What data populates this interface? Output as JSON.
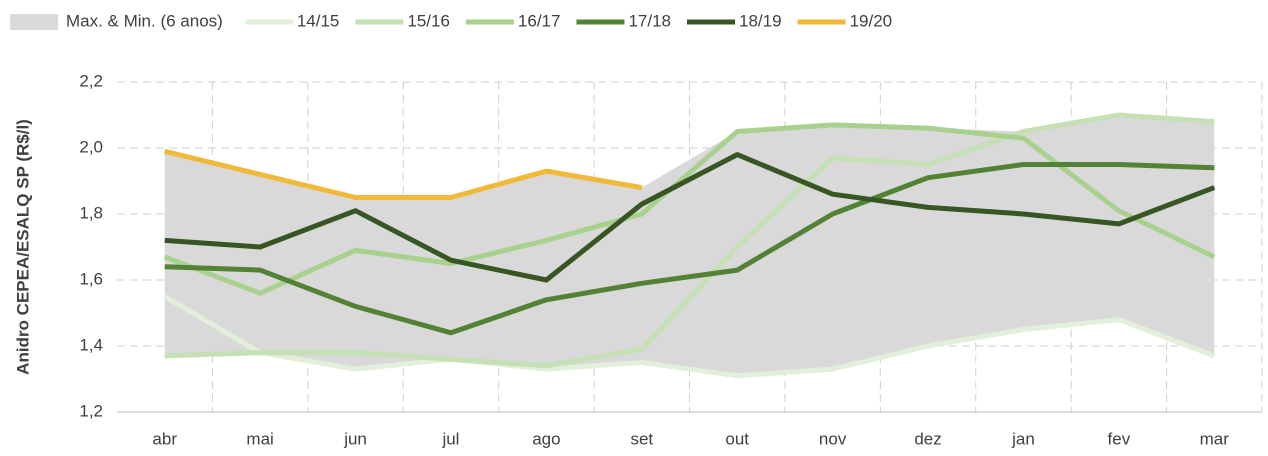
{
  "chart_data": {
    "type": "line",
    "y_label": "Anidro CEPEA/ESALQ SP (R$/l)",
    "categories": [
      "abr",
      "mai",
      "jun",
      "jul",
      "ago",
      "set",
      "out",
      "nov",
      "dez",
      "jan",
      "fev",
      "mar"
    ],
    "band": {
      "name": "Max. & Min. (6 anos)",
      "color": "#d9d9d9",
      "upper": [
        1.99,
        1.92,
        1.85,
        1.85,
        1.93,
        1.88,
        2.05,
        2.07,
        2.06,
        2.05,
        2.1,
        2.08
      ],
      "lower": [
        1.37,
        1.38,
        1.33,
        1.36,
        1.33,
        1.35,
        1.31,
        1.33,
        1.4,
        1.45,
        1.48,
        1.37
      ]
    },
    "series": [
      {
        "name": "14/15",
        "color": "#e2efda",
        "values": [
          1.55,
          1.38,
          1.33,
          1.36,
          1.33,
          1.35,
          1.31,
          1.33,
          1.4,
          1.45,
          1.48,
          1.37
        ]
      },
      {
        "name": "15/16",
        "color": "#c5e0b4",
        "values": [
          1.37,
          1.38,
          1.38,
          1.36,
          1.34,
          1.39,
          1.7,
          1.97,
          1.95,
          2.05,
          2.1,
          2.08
        ]
      },
      {
        "name": "16/17",
        "color": "#a9d18e",
        "values": [
          1.67,
          1.56,
          1.69,
          1.65,
          1.72,
          1.8,
          2.05,
          2.07,
          2.06,
          2.03,
          1.81,
          1.67
        ]
      },
      {
        "name": "17/18",
        "color": "#548235",
        "values": [
          1.64,
          1.63,
          1.52,
          1.44,
          1.54,
          1.59,
          1.63,
          1.8,
          1.91,
          1.95,
          1.95,
          1.94
        ]
      },
      {
        "name": "18/19",
        "color": "#375623",
        "values": [
          1.72,
          1.7,
          1.81,
          1.66,
          1.6,
          1.83,
          1.98,
          1.86,
          1.82,
          1.8,
          1.77,
          1.88
        ]
      },
      {
        "name": "19/20",
        "color": "#f0b93a",
        "values": [
          1.99,
          1.92,
          1.85,
          1.85,
          1.93,
          1.88,
          null,
          null,
          null,
          null,
          null,
          null
        ]
      }
    ],
    "ylim": [
      1.2,
      2.2
    ],
    "yticks": [
      {
        "value": 1.2,
        "label": "1,2"
      },
      {
        "value": 1.4,
        "label": "1,4"
      },
      {
        "value": 1.6,
        "label": "1,6"
      },
      {
        "value": 1.8,
        "label": "1,8"
      },
      {
        "value": 2.0,
        "label": "2,0"
      },
      {
        "value": 2.2,
        "label": "2,2"
      }
    ],
    "grid": true,
    "legend": "top"
  }
}
